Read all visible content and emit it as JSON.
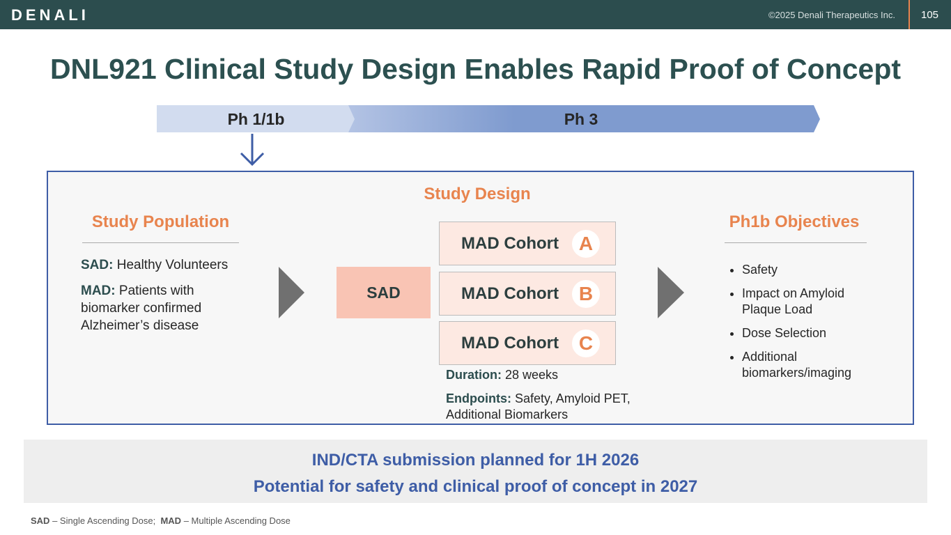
{
  "header": {
    "logo": "DENALI",
    "copyright": "©2025 Denali Therapeutics Inc.",
    "page_number": "105"
  },
  "title": "DNL921 Clinical Study Design Enables Rapid Proof of Concept",
  "phases": [
    "Ph 1/1b",
    "Ph 3"
  ],
  "study_design": {
    "title": "Study Design",
    "population": {
      "title": "Study Population",
      "items": [
        {
          "label": "SAD:",
          "text": "Healthy Volunteers"
        },
        {
          "label": "MAD:",
          "text": "Patients with biomarker confirmed Alzheimer’s disease"
        }
      ]
    },
    "sad": "SAD",
    "cohorts": [
      {
        "label": "MAD Cohort",
        "letter": "A"
      },
      {
        "label": "MAD Cohort",
        "letter": "B"
      },
      {
        "label": "MAD Cohort",
        "letter": "C"
      }
    ],
    "details": [
      {
        "label": "Duration:",
        "text": "28 weeks"
      },
      {
        "label": "Endpoints:",
        "text": "Safety, Amyloid PET, Additional Biomarkers"
      }
    ],
    "objectives": {
      "title": "Ph1b Objectives",
      "items": [
        "Safety",
        "Impact on Amyloid Plaque Load",
        "Dose Selection",
        "Additional biomarkers/imaging"
      ]
    }
  },
  "callout": [
    "IND/CTA submission planned for 1H 2026",
    "Potential for safety and clinical proof of concept in 2027"
  ],
  "footnote": [
    {
      "label": "SAD",
      "text": "– Single Ascending Dose;"
    },
    {
      "label": "MAD",
      "text": "– Multiple Ascending Dose"
    }
  ]
}
